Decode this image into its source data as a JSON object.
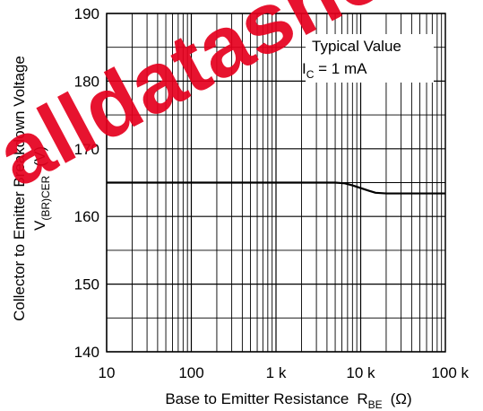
{
  "watermark": {
    "text": "alldatasheet",
    "color": "#e5001e"
  },
  "chart_data": {
    "type": "line",
    "title": "",
    "xlabel": {
      "main": "Base to Emitter Resistance",
      "symbol": "R",
      "symbol_sub": "BE",
      "unit": "(Ω)"
    },
    "ylabel": {
      "line1": "Collector to Emitter Breakdown Voltage",
      "symbol": "V",
      "symbol_sub": "(BR)CER",
      "unit": "(V)"
    },
    "x_scale": "log",
    "xlim": [
      10,
      100000
    ],
    "ylim": [
      140,
      190
    ],
    "x_ticks": [
      {
        "value": 10,
        "label": "10"
      },
      {
        "value": 100,
        "label": "100"
      },
      {
        "value": 1000,
        "label": "1 k"
      },
      {
        "value": 10000,
        "label": "10 k"
      },
      {
        "value": 100000,
        "label": "100 k"
      }
    ],
    "y_ticks": [
      {
        "value": 140,
        "label": "140"
      },
      {
        "value": 150,
        "label": "150"
      },
      {
        "value": 160,
        "label": "160"
      },
      {
        "value": 170,
        "label": "170"
      },
      {
        "value": 180,
        "label": "180"
      },
      {
        "value": 190,
        "label": "190"
      }
    ],
    "y_minor_step": 5,
    "grid": true,
    "annotation": {
      "line1": "Typical Value",
      "line2_symbol": "I",
      "line2_sub": "C",
      "line2_rest": " = 1 mA"
    },
    "series": [
      {
        "x": [
          10,
          100,
          1000,
          5000,
          6500,
          8000,
          10000,
          12500,
          15000,
          20000,
          30000,
          50000,
          100000
        ],
        "y": [
          165,
          165,
          165,
          165,
          164.9,
          164.6,
          164.2,
          163.8,
          163.5,
          163.4,
          163.4,
          163.4,
          163.4
        ]
      }
    ]
  }
}
